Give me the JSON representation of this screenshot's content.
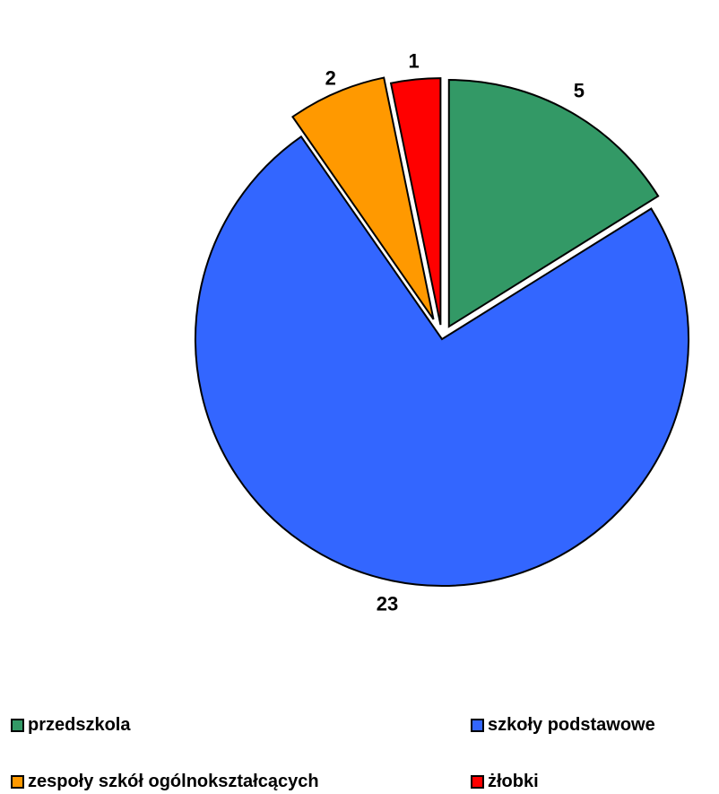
{
  "chart_data": {
    "type": "pie",
    "title": "",
    "categories": [
      "przedszkola",
      "szkoły podstawowe",
      "zespoły szkół ogólnokształcących",
      "żłobki"
    ],
    "values": [
      5,
      23,
      2,
      1
    ],
    "colors": [
      "#339966",
      "#3366FF",
      "#FF9900",
      "#FF0000"
    ],
    "exploded": true,
    "start": "12 o'clock, clockwise",
    "legend_position": "bottom",
    "data_labels": [
      "5",
      "23",
      "2",
      "1"
    ]
  },
  "legend": [
    {
      "label": "przedszkola",
      "color": "#339966"
    },
    {
      "label": "szkoły podstawowe",
      "color": "#3366FF"
    },
    {
      "label": "zespoły szkół ogólnokształcących",
      "color": "#FF9900"
    },
    {
      "label": "żłobki",
      "color": "#FF0000"
    }
  ]
}
